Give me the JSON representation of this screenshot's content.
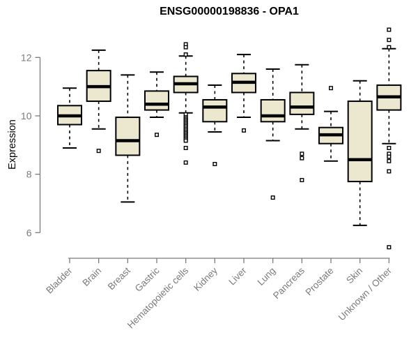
{
  "chart_data": {
    "type": "boxplot",
    "title": "ENSG00000198836 - OPA1",
    "ylabel": "Expression",
    "xlabel": "",
    "yticks": [
      6,
      8,
      10,
      12
    ],
    "ylim": [
      5.4,
      13.1
    ],
    "grid": false,
    "legend": null,
    "box_fill": "#ECE7CF",
    "box_border": "#000000",
    "median_color": "#000000",
    "whisker_color": "#000000",
    "outlier_color": "#000000",
    "axis_color": "#7a7a7a",
    "title_color": "#000000",
    "background": "#ffffff",
    "categories": [
      "Bladder",
      "Brain",
      "Breast",
      "Gastric",
      "Hematopoietic cells",
      "Kidney",
      "Liver",
      "Lung",
      "Pancreas",
      "Prostate",
      "Skin",
      "Unknown / Other"
    ],
    "series": [
      {
        "name": "Bladder",
        "low": 8.9,
        "q1": 9.7,
        "median": 10.0,
        "q3": 10.35,
        "high": 10.95,
        "outliers": []
      },
      {
        "name": "Brain",
        "low": 9.55,
        "q1": 10.5,
        "median": 11.0,
        "q3": 11.55,
        "high": 12.25,
        "outliers": [
          8.8
        ]
      },
      {
        "name": "Breast",
        "low": 7.05,
        "q1": 8.65,
        "median": 9.15,
        "q3": 9.95,
        "high": 11.4,
        "outliers": []
      },
      {
        "name": "Gastric",
        "low": 9.95,
        "q1": 10.2,
        "median": 10.4,
        "q3": 10.85,
        "high": 11.5,
        "outliers": [
          9.35
        ]
      },
      {
        "name": "Hematopoietic cells",
        "low": 10.1,
        "q1": 10.8,
        "median": 11.1,
        "q3": 11.35,
        "high": 12.05,
        "outliers": [
          12.45,
          12.35,
          12.1,
          10.05,
          9.95,
          9.9,
          9.85,
          9.8,
          9.75,
          9.7,
          9.65,
          9.6,
          9.55,
          9.5,
          9.45,
          9.4,
          9.35,
          9.3,
          9.25,
          9.2,
          9.15,
          8.9,
          8.4
        ]
      },
      {
        "name": "Kidney",
        "low": 9.45,
        "q1": 9.8,
        "median": 10.3,
        "q3": 10.55,
        "high": 11.05,
        "outliers": [
          8.35
        ]
      },
      {
        "name": "Liver",
        "low": 9.95,
        "q1": 10.8,
        "median": 11.15,
        "q3": 11.45,
        "high": 12.1,
        "outliers": [
          9.5
        ]
      },
      {
        "name": "Lung",
        "low": 9.15,
        "q1": 9.8,
        "median": 10.0,
        "q3": 10.55,
        "high": 11.6,
        "outliers": [
          7.2
        ]
      },
      {
        "name": "Pancreas",
        "low": 9.55,
        "q1": 10.05,
        "median": 10.3,
        "q3": 10.8,
        "high": 11.75,
        "outliers": [
          8.7,
          8.55,
          7.8
        ]
      },
      {
        "name": "Prostate",
        "low": 8.45,
        "q1": 9.05,
        "median": 9.35,
        "q3": 9.6,
        "high": 10.15,
        "outliers": [
          10.95
        ]
      },
      {
        "name": "Skin",
        "low": 6.25,
        "q1": 7.75,
        "median": 8.5,
        "q3": 10.5,
        "high": 11.2,
        "outliers": []
      },
      {
        "name": "Unknown / Other",
        "low": 9.05,
        "q1": 10.2,
        "median": 10.65,
        "q3": 11.05,
        "high": 12.3,
        "outliers": [
          12.95,
          12.6,
          12.35,
          8.9,
          8.7,
          8.6,
          8.45,
          8.1,
          5.5
        ]
      }
    ]
  }
}
